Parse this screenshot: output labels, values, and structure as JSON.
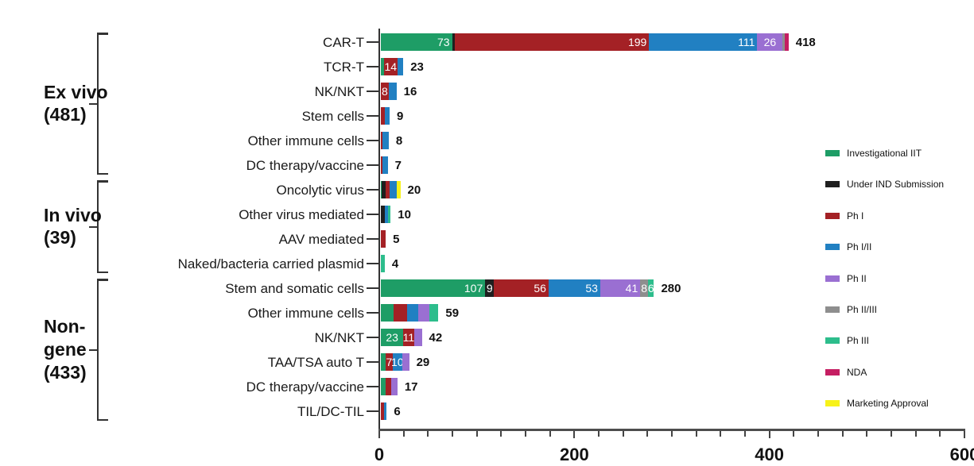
{
  "chart_data": {
    "type": "bar",
    "variant": "horizontal-stacked",
    "xlim": [
      0,
      600
    ],
    "x_major_ticks": [
      0,
      200,
      400,
      600
    ],
    "x_minor_tick_step": 25,
    "grid": false,
    "legend_position": "right",
    "stages": [
      {
        "name": "Investigational IIT",
        "color": "#1e9d66"
      },
      {
        "name": "Under IND Submission",
        "color": "#1f1f1f"
      },
      {
        "name": "Ph I",
        "color": "#a42125"
      },
      {
        "name": "Ph I/II",
        "color": "#2180c2"
      },
      {
        "name": "Ph II",
        "color": "#9a6fd2"
      },
      {
        "name": "Ph II/III",
        "color": "#8e8e8e"
      },
      {
        "name": "Ph III",
        "color": "#2dbd8c"
      },
      {
        "name": "NDA",
        "color": "#c51e62"
      },
      {
        "name": "Marketing Approval",
        "color": "#f7f219"
      }
    ],
    "groups": [
      {
        "label": "Ex vivo\n(481)",
        "total": 481,
        "rows": [
          {
            "label": "CAR-T",
            "total": 418,
            "segments": [
              {
                "stage": 0,
                "value": 73,
                "show": true
              },
              {
                "stage": 1,
                "value": 3,
                "show": false
              },
              {
                "stage": 2,
                "value": 199,
                "show": true
              },
              {
                "stage": 3,
                "value": 111,
                "show": true
              },
              {
                "stage": 4,
                "value": 26,
                "show": true
              },
              {
                "stage": 5,
                "value": 2,
                "show": false
              },
              {
                "stage": 7,
                "value": 4,
                "show": false
              }
            ]
          },
          {
            "label": "TCR-T",
            "total": 23,
            "segments": [
              {
                "stage": 0,
                "value": 3,
                "show": false
              },
              {
                "stage": 2,
                "value": 14,
                "show": true
              },
              {
                "stage": 3,
                "value": 6,
                "show": false
              }
            ]
          },
          {
            "label": "NK/NKT",
            "total": 16,
            "segments": [
              {
                "stage": 2,
                "value": 8,
                "show": true
              },
              {
                "stage": 3,
                "value": 8,
                "show": false
              }
            ]
          },
          {
            "label": "Stem cells",
            "total": 9,
            "segments": [
              {
                "stage": 2,
                "value": 4,
                "show": false
              },
              {
                "stage": 3,
                "value": 5,
                "show": false
              }
            ]
          },
          {
            "label": "Other immune cells",
            "total": 8,
            "segments": [
              {
                "stage": 2,
                "value": 2,
                "show": false
              },
              {
                "stage": 3,
                "value": 6,
                "show": false
              }
            ]
          },
          {
            "label": "DC therapy/vaccine",
            "total": 7,
            "segments": [
              {
                "stage": 2,
                "value": 2,
                "show": false
              },
              {
                "stage": 3,
                "value": 5,
                "show": false
              }
            ]
          }
        ]
      },
      {
        "label": "In vivo\n(39)",
        "total": 39,
        "rows": [
          {
            "label": "Oncolytic virus",
            "total": 20,
            "segments": [
              {
                "stage": 0,
                "value": 1,
                "show": false
              },
              {
                "stage": 1,
                "value": 4,
                "show": false
              },
              {
                "stage": 2,
                "value": 4,
                "show": false
              },
              {
                "stage": 3,
                "value": 7,
                "show": false
              },
              {
                "stage": 8,
                "value": 4,
                "show": false
              }
            ]
          },
          {
            "label": "Other virus mediated",
            "total": 10,
            "segments": [
              {
                "stage": 1,
                "value": 4,
                "show": false
              },
              {
                "stage": 3,
                "value": 3,
                "show": false
              },
              {
                "stage": 6,
                "value": 3,
                "show": false
              }
            ]
          },
          {
            "label": "AAV mediated",
            "total": 5,
            "segments": [
              {
                "stage": 2,
                "value": 5,
                "show": false
              }
            ]
          },
          {
            "label": "Naked/bacteria carried plasmid",
            "total": 4,
            "segments": [
              {
                "stage": 6,
                "value": 4,
                "show": false
              }
            ]
          }
        ]
      },
      {
        "label": "Non-\ngene\n(433)",
        "total": 433,
        "rows": [
          {
            "label": "Stem and somatic cells",
            "total": 280,
            "segments": [
              {
                "stage": 0,
                "value": 107,
                "show": true
              },
              {
                "stage": 1,
                "value": 9,
                "show": true
              },
              {
                "stage": 2,
                "value": 56,
                "show": true
              },
              {
                "stage": 3,
                "value": 53,
                "show": true
              },
              {
                "stage": 4,
                "value": 41,
                "show": true
              },
              {
                "stage": 5,
                "value": 8,
                "show": true
              },
              {
                "stage": 6,
                "value": 6,
                "show": true
              }
            ]
          },
          {
            "label": "Other immune cells",
            "total": 59,
            "segments": [
              {
                "stage": 0,
                "value": 13,
                "show": false
              },
              {
                "stage": 2,
                "value": 14,
                "show": false
              },
              {
                "stage": 3,
                "value": 11,
                "show": false
              },
              {
                "stage": 4,
                "value": 12,
                "show": false
              },
              {
                "stage": 6,
                "value": 9,
                "show": false
              }
            ]
          },
          {
            "label": "NK/NKT",
            "total": 42,
            "segments": [
              {
                "stage": 0,
                "value": 23,
                "show": true
              },
              {
                "stage": 2,
                "value": 11,
                "show": true
              },
              {
                "stage": 4,
                "value": 8,
                "show": false
              }
            ]
          },
          {
            "label": "TAA/TSA auto T",
            "total": 29,
            "segments": [
              {
                "stage": 0,
                "value": 5,
                "show": false
              },
              {
                "stage": 2,
                "value": 7,
                "show": true
              },
              {
                "stage": 3,
                "value": 10,
                "show": true
              },
              {
                "stage": 4,
                "value": 7,
                "show": false
              }
            ]
          },
          {
            "label": "DC therapy/vaccine",
            "total": 17,
            "segments": [
              {
                "stage": 0,
                "value": 5,
                "show": false
              },
              {
                "stage": 2,
                "value": 6,
                "show": false
              },
              {
                "stage": 4,
                "value": 6,
                "show": false
              }
            ]
          },
          {
            "label": "TIL/DC-TIL",
            "total": 6,
            "segments": [
              {
                "stage": 2,
                "value": 3,
                "show": false
              },
              {
                "stage": 3,
                "value": 3,
                "show": false
              }
            ]
          }
        ]
      }
    ]
  }
}
